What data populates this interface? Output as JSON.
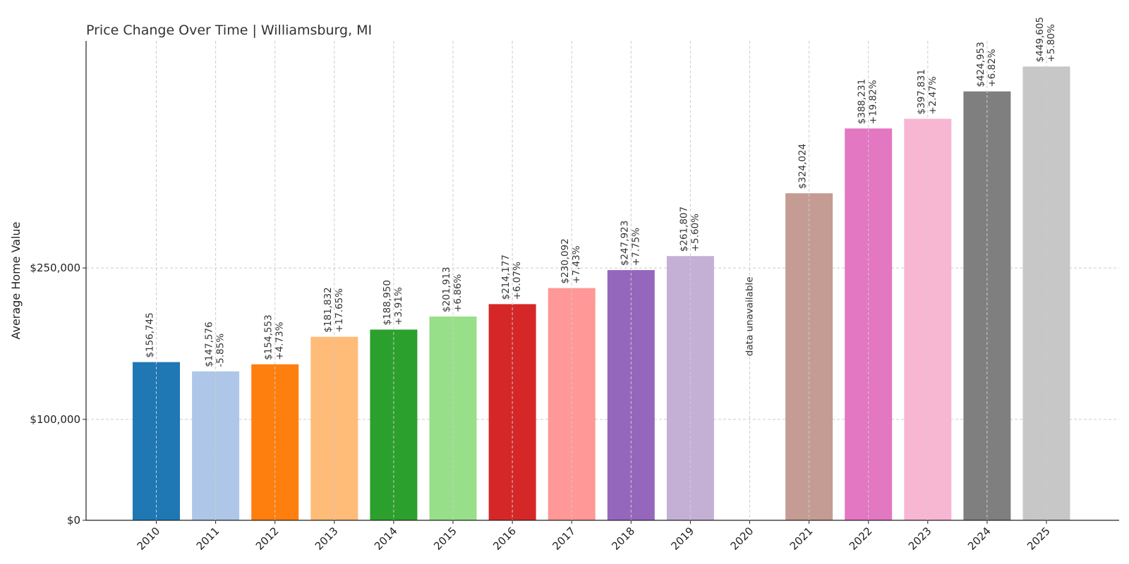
{
  "chart_data": {
    "type": "bar",
    "title": "Price Change Over Time | Williamsburg, MI",
    "xlabel": "",
    "ylabel": "Average Home Value",
    "ylim": [
      0,
      475000
    ],
    "yticks": [
      {
        "value": 0,
        "label": "$0"
      },
      {
        "value": 100000,
        "label": "$100,000"
      },
      {
        "value": 250000,
        "label": "$250,000"
      }
    ],
    "grid": true,
    "categories": [
      "2010",
      "2011",
      "2012",
      "2013",
      "2014",
      "2015",
      "2016",
      "2017",
      "2018",
      "2019",
      "2020",
      "2021",
      "2022",
      "2023",
      "2024",
      "2025"
    ],
    "values": [
      156745,
      147576,
      154553,
      181832,
      188950,
      201913,
      214177,
      230092,
      247923,
      261807,
      null,
      324024,
      388231,
      397831,
      424953,
      449605
    ],
    "value_labels": [
      "$156,745",
      "$147,576",
      "$154,553",
      "$181,832",
      "$188,950",
      "$201,913",
      "$214,177",
      "$230,092",
      "$247,923",
      "$261,807",
      "data unavailable",
      "$324,024",
      "$388,231",
      "$397,831",
      "$424,953",
      "$449,605"
    ],
    "change_labels": [
      "",
      "-5.85%",
      "+4.73%",
      "+17.65%",
      "+3.91%",
      "+6.86%",
      "+6.07%",
      "+7.43%",
      "+7.75%",
      "+5.60%",
      "",
      "",
      "+19.82%",
      "+2.47%",
      "+6.82%",
      "+5.80%"
    ],
    "colors": [
      "#1f77b4",
      "#aec7e8",
      "#ff7f0e",
      "#ffbb78",
      "#2ca02c",
      "#98df8a",
      "#d62728",
      "#ff9896",
      "#9467bd",
      "#c5b0d5",
      "#8c564b",
      "#c49c94",
      "#e377c2",
      "#f7b6d2",
      "#7f7f7f",
      "#c7c7c7"
    ]
  }
}
